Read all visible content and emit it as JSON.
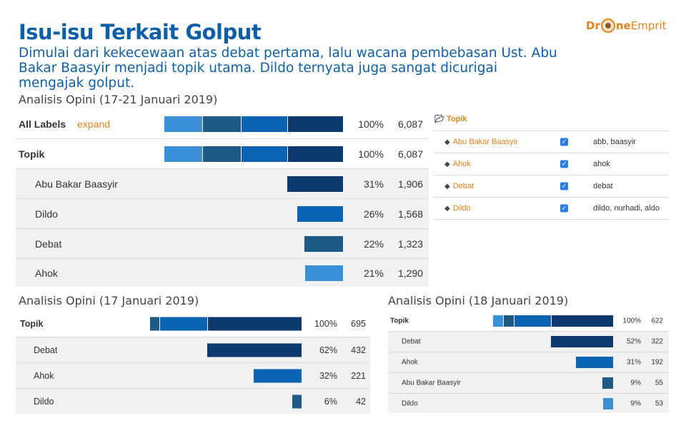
{
  "header": {
    "title": "Isu-isu Terkait Golput",
    "subtitle": "Dimulai dari kekecewaan atas debat pertama, lalu wacana pembebasan Ust. Abu Bakar Baasyir menjadi topik utama. Dildo ternyata juga sangat dicurigai mengajak golput.",
    "logo_left": "Dr",
    "logo_right_bold": "ne",
    "logo_right": "Emprit"
  },
  "colors": {
    "navy": "#0d3a6e",
    "slate": "#1f5a86",
    "blue": "#0a63b3",
    "light": "#3a8fd6",
    "accent": "#e0821d",
    "title": "#0d5fa8"
  },
  "chart_data": [
    {
      "type": "bar",
      "title": "Analisis Opini (17-21 Januari 2019)",
      "expand_label": "expand",
      "rows": [
        {
          "label": "All Labels",
          "pct": "100%",
          "count": "6,087",
          "value": 6087,
          "bold": true
        },
        {
          "label": "Topik",
          "pct": "100%",
          "count": "6,087",
          "value": 6087,
          "bold": true
        },
        {
          "label": "Abu Bakar Baasyir",
          "pct": "31%",
          "count": "1,906",
          "value": 1906,
          "color": "navy"
        },
        {
          "label": "Dildo",
          "pct": "26%",
          "count": "1,568",
          "value": 1568,
          "color": "blue"
        },
        {
          "label": "Debat",
          "pct": "22%",
          "count": "1,323",
          "value": 1323,
          "color": "slate"
        },
        {
          "label": "Ahok",
          "pct": "21%",
          "count": "1,290",
          "value": 1290,
          "color": "light"
        }
      ]
    },
    {
      "type": "bar",
      "title": "Analisis Opini (17 Januari 2019)",
      "rows": [
        {
          "label": "Topik",
          "pct": "100%",
          "count": "695",
          "value": 695,
          "bold": true
        },
        {
          "label": "Debat",
          "pct": "62%",
          "count": "432",
          "value": 432,
          "color": "navy"
        },
        {
          "label": "Ahok",
          "pct": "32%",
          "count": "221",
          "value": 221,
          "color": "blue"
        },
        {
          "label": "Dildo",
          "pct": "6%",
          "count": "42",
          "value": 42,
          "color": "slate"
        }
      ]
    },
    {
      "type": "bar",
      "title": "Analisis Opini (18 Januari 2019)",
      "rows": [
        {
          "label": "Topik",
          "pct": "100%",
          "count": "622",
          "value": 622,
          "bold": true
        },
        {
          "label": "Debat",
          "pct": "52%",
          "count": "322",
          "value": 322,
          "color": "navy"
        },
        {
          "label": "Ahok",
          "pct": "31%",
          "count": "192",
          "value": 192,
          "color": "blue"
        },
        {
          "label": "Abu Bakar Baasyir",
          "pct": "9%",
          "count": "55",
          "value": 55,
          "color": "slate"
        },
        {
          "label": "Dildo",
          "pct": "9%",
          "count": "53",
          "value": 53,
          "color": "light"
        }
      ]
    }
  ],
  "topik_table": {
    "header": "Topik",
    "rows": [
      {
        "label": "Abu Bakar Baasyir",
        "keywords": "abb, baasyir",
        "checked": true
      },
      {
        "label": "Ahok",
        "keywords": "ahok",
        "checked": true
      },
      {
        "label": "Debat",
        "keywords": "debat",
        "checked": true
      },
      {
        "label": "Dildo",
        "keywords": "dildo, nurhadi, aldo",
        "checked": true
      }
    ]
  }
}
